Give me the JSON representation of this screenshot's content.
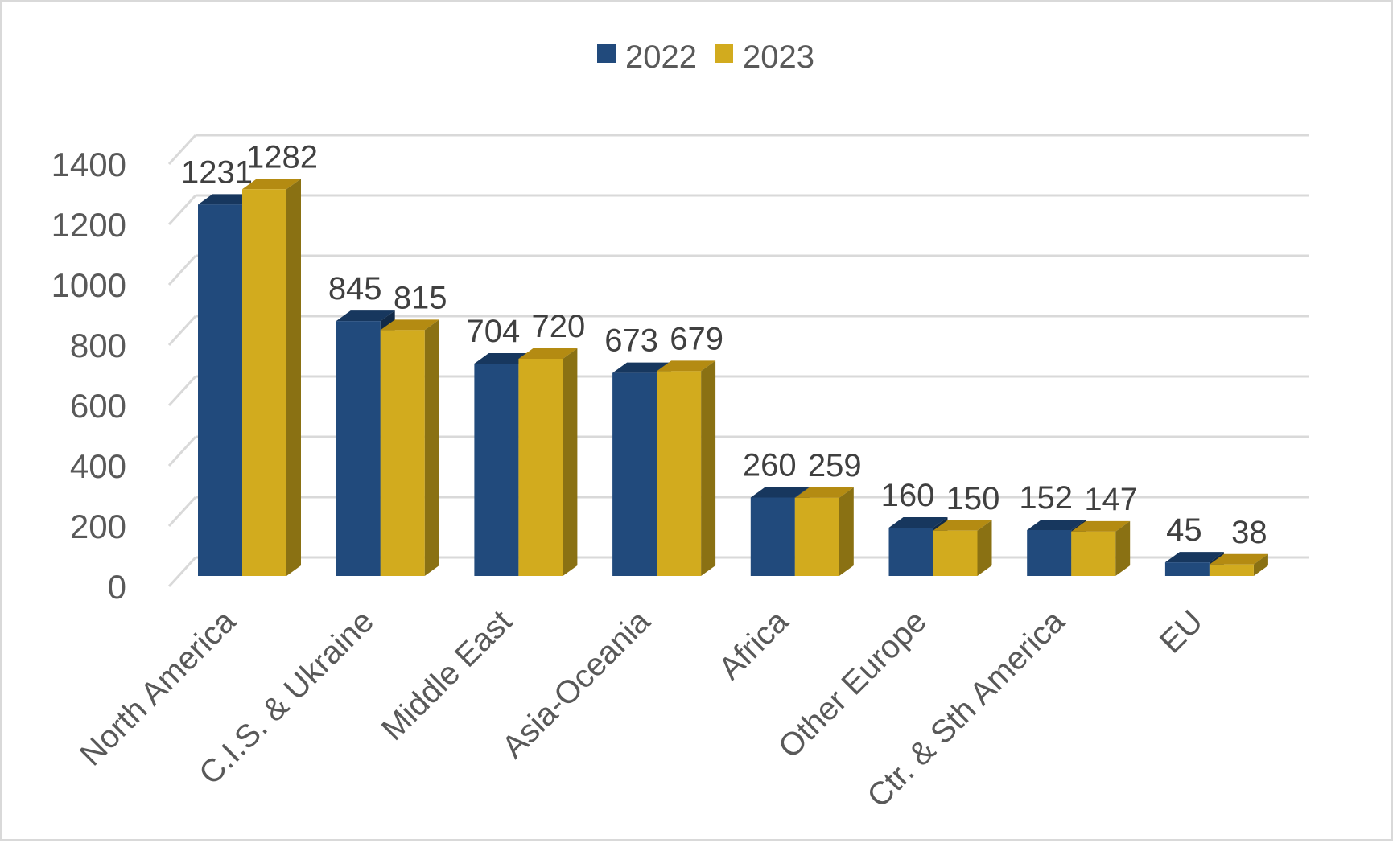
{
  "chart_data": {
    "type": "bar",
    "variant": "3d-clustered-column",
    "categories": [
      "North America",
      "C.I.S. & Ukraine",
      "Middle East",
      "Asia-Oceania",
      "Africa",
      "Other Europe",
      "Ctr. & Sth America",
      "EU"
    ],
    "series": [
      {
        "name": "2022",
        "values": [
          1231,
          845,
          704,
          673,
          260,
          160,
          152,
          45
        ],
        "color": "#214A7C",
        "top_color": "#17375E",
        "side_color": "#122A47"
      },
      {
        "name": "2023",
        "values": [
          1282,
          815,
          720,
          679,
          259,
          150,
          147,
          38
        ],
        "color": "#D2AB1E",
        "top_color": "#B48B12",
        "side_color": "#8A7113"
      }
    ],
    "xlabel": "",
    "ylabel": "",
    "y_axis": {
      "min": 0,
      "max": 1400,
      "tick_interval": 200,
      "ticks": [
        0,
        200,
        400,
        600,
        800,
        1000,
        1200,
        1400
      ]
    },
    "legend_position": "top",
    "grid": true,
    "styles": {
      "axis_text_color": "#595959",
      "value_label_color": "#404040",
      "gridline_color": "#D9D9D9",
      "background": "#FFFFFF",
      "border_color": "#D9D9D9"
    }
  }
}
